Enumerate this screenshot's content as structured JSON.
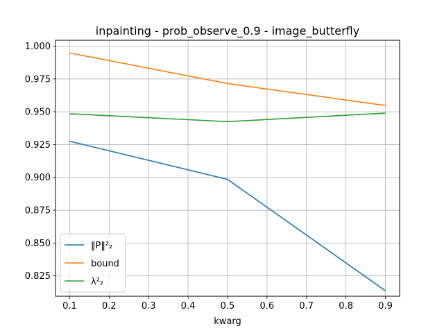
{
  "chart_data": {
    "type": "line",
    "title": "inpainting - prob_observe_0.9 - image_butterfly",
    "xlabel": "kwarg",
    "ylabel": "",
    "x": [
      0.1,
      0.5,
      0.9
    ],
    "xlim": [
      0.064,
      0.936
    ],
    "ylim": [
      0.8095,
      1.0045
    ],
    "xticks": [
      "0.1",
      "0.2",
      "0.3",
      "0.4",
      "0.5",
      "0.6",
      "0.7",
      "0.8",
      "0.9"
    ],
    "yticks": [
      "0.825",
      "0.850",
      "0.875",
      "0.900",
      "0.925",
      "0.950",
      "0.975",
      "1.000"
    ],
    "grid": true,
    "legend_position": "lower-left",
    "series": [
      {
        "name": "‖P‖²₂",
        "color": "#1f77b4",
        "values": [
          0.9275,
          0.8985,
          0.8137
        ]
      },
      {
        "name": "bound",
        "color": "#ff7f0e",
        "values": [
          0.9948,
          0.9715,
          0.9548
        ]
      },
      {
        "name": "λ²₂",
        "color": "#2ca02c",
        "values": [
          0.9485,
          0.9425,
          0.949
        ]
      }
    ]
  }
}
